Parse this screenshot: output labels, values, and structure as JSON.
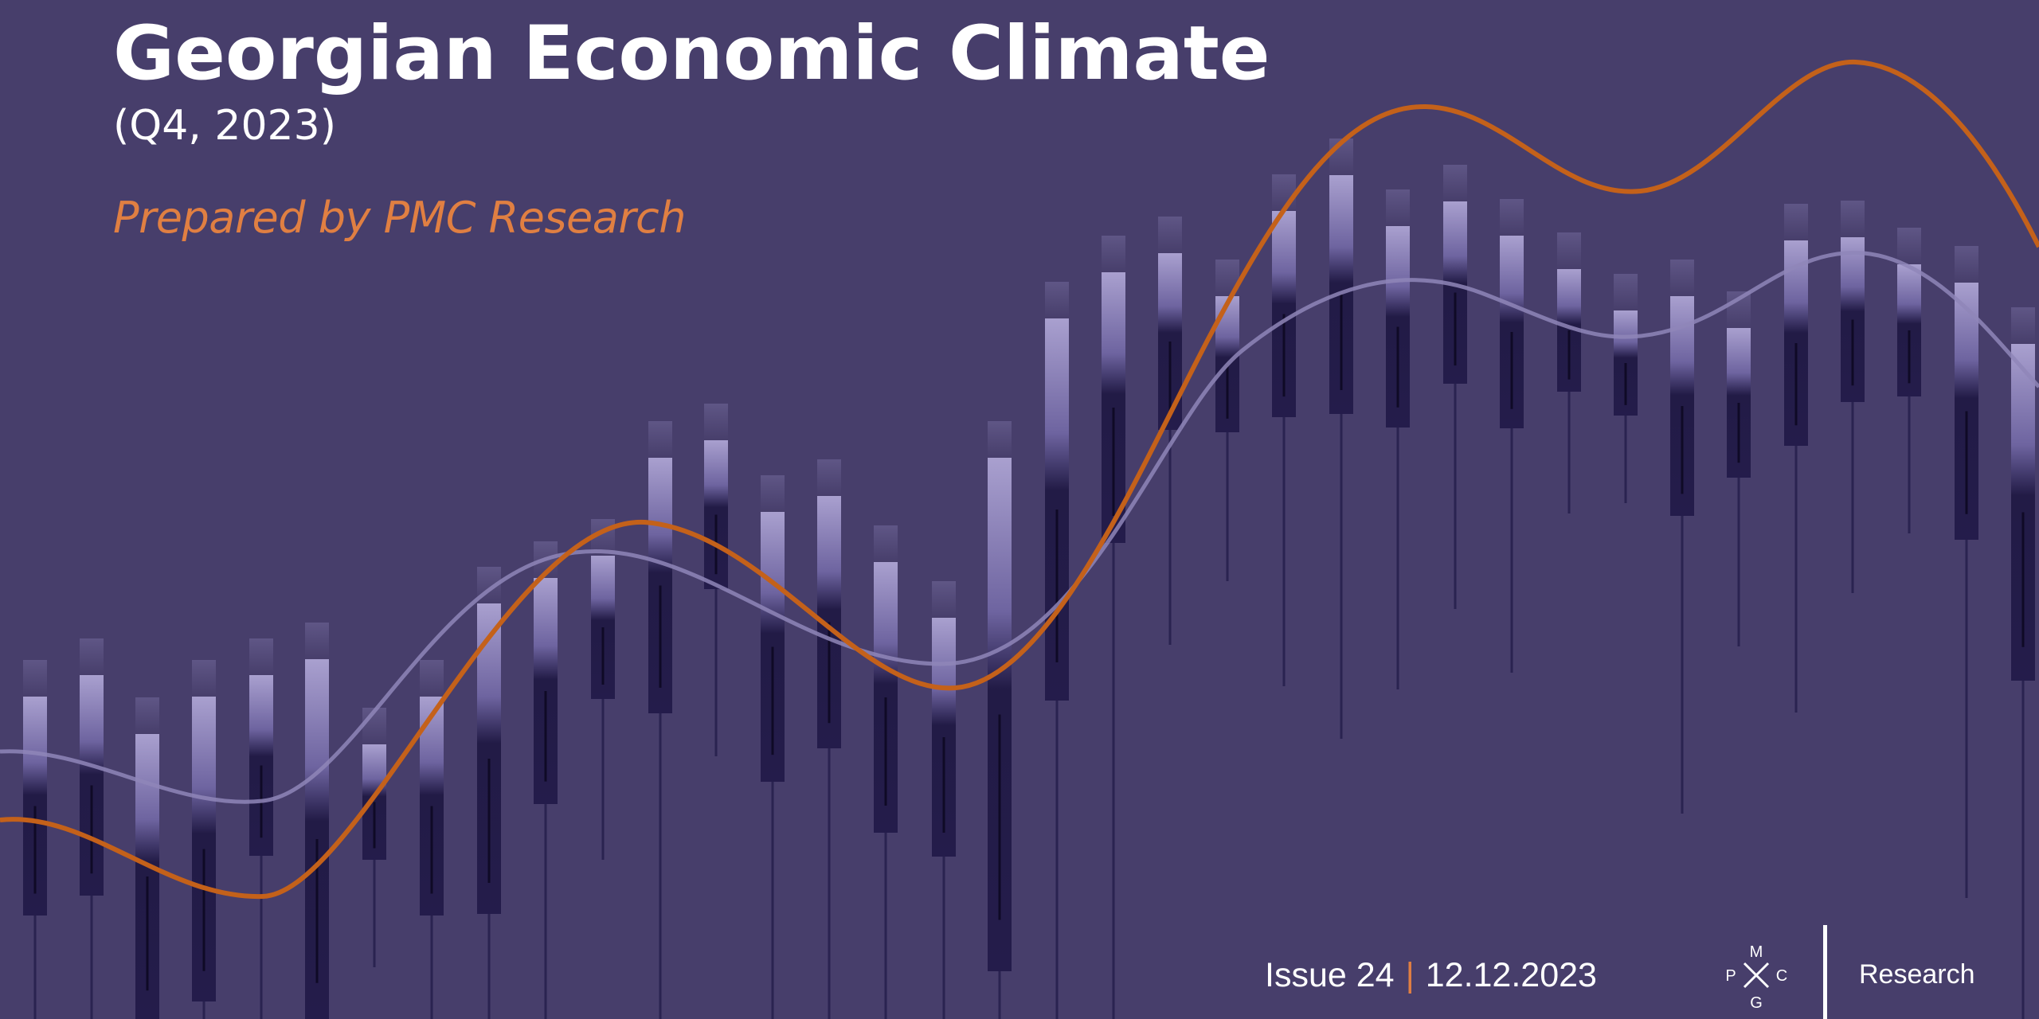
{
  "cover": {
    "title": "Georgian Economic Climate",
    "period": "(Q4, 2023)",
    "prepared_by": "Prepared by PMC Research",
    "issue": "Issue 24",
    "separator": "|",
    "date": "12.12.2023"
  },
  "logo": {
    "letters": {
      "top": "M",
      "left": "P",
      "right": "C",
      "bottom": "G"
    },
    "word": "Research"
  },
  "colors": {
    "background": "#473e6b",
    "accent_orange": "#e07f42",
    "curve_orange": "#c4611a",
    "curve_lavender": "#8f86b8",
    "text": "#ffffff"
  }
}
